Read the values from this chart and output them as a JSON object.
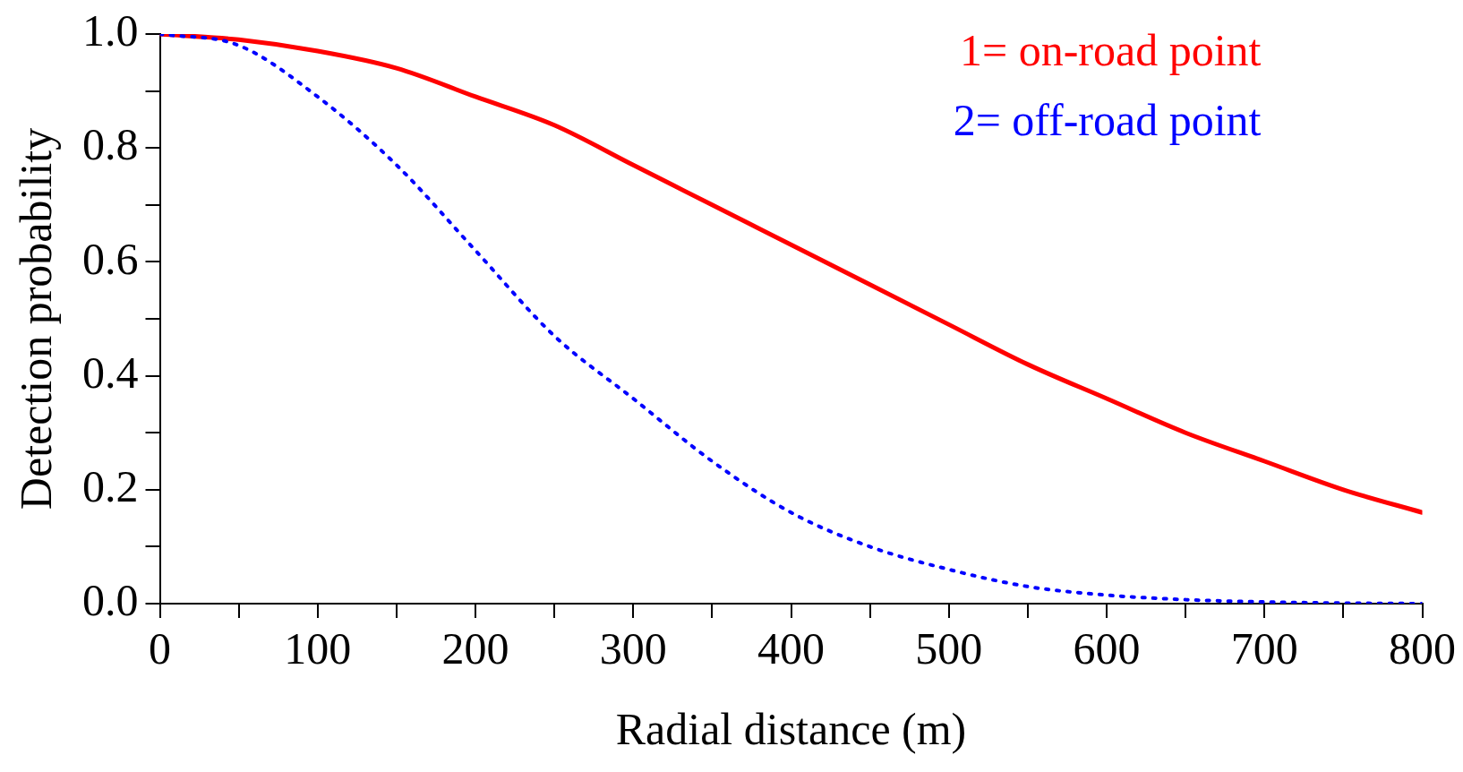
{
  "chart_data": {
    "type": "line",
    "xlabel": "Radial distance (m)",
    "ylabel": "Detection probability",
    "x": [
      0,
      50,
      100,
      150,
      200,
      250,
      300,
      350,
      400,
      450,
      500,
      550,
      600,
      650,
      700,
      750,
      800
    ],
    "series": [
      {
        "name": "1= on-road point",
        "color": "#ff0000",
        "line_style": "solid",
        "values": [
          1.0,
          0.99,
          0.97,
          0.94,
          0.89,
          0.84,
          0.77,
          0.7,
          0.63,
          0.56,
          0.49,
          0.42,
          0.36,
          0.3,
          0.25,
          0.2,
          0.16
        ]
      },
      {
        "name": "2= off-road point",
        "color": "#0000ff",
        "line_style": "dotted",
        "values": [
          1.0,
          0.98,
          0.89,
          0.77,
          0.62,
          0.47,
          0.36,
          0.25,
          0.16,
          0.1,
          0.06,
          0.03,
          0.015,
          0.007,
          0.003,
          0.001,
          0.0
        ]
      }
    ],
    "xlim": [
      0,
      800
    ],
    "xticks": [
      0,
      {
        "value": 50,
        "label": null
      },
      100,
      {
        "value": 150,
        "label": null
      },
      200,
      {
        "value": 250,
        "label": null
      },
      300,
      {
        "value": 350,
        "label": null
      },
      400,
      {
        "value": 450,
        "label": null
      },
      500,
      {
        "value": 550,
        "label": null
      },
      600,
      {
        "value": 650,
        "label": null
      },
      700,
      {
        "value": 750,
        "label": null
      },
      800
    ],
    "ylim": [
      0,
      1
    ],
    "yticks": [
      {
        "value": 0,
        "label": "0.0"
      },
      {
        "value": 0.1,
        "label": null
      },
      {
        "value": 0.2,
        "label": "0.2"
      },
      {
        "value": 0.3,
        "label": null
      },
      {
        "value": 0.4,
        "label": "0.4"
      },
      {
        "value": 0.5,
        "label": null
      },
      {
        "value": 0.6,
        "label": "0.6"
      },
      {
        "value": 0.7,
        "label": null
      },
      {
        "value": 0.8,
        "label": "0.8"
      },
      {
        "value": 0.9,
        "label": null
      },
      {
        "value": 1,
        "label": "1.0"
      }
    ],
    "grid": false,
    "legend": "top right",
    "marker": "none"
  }
}
